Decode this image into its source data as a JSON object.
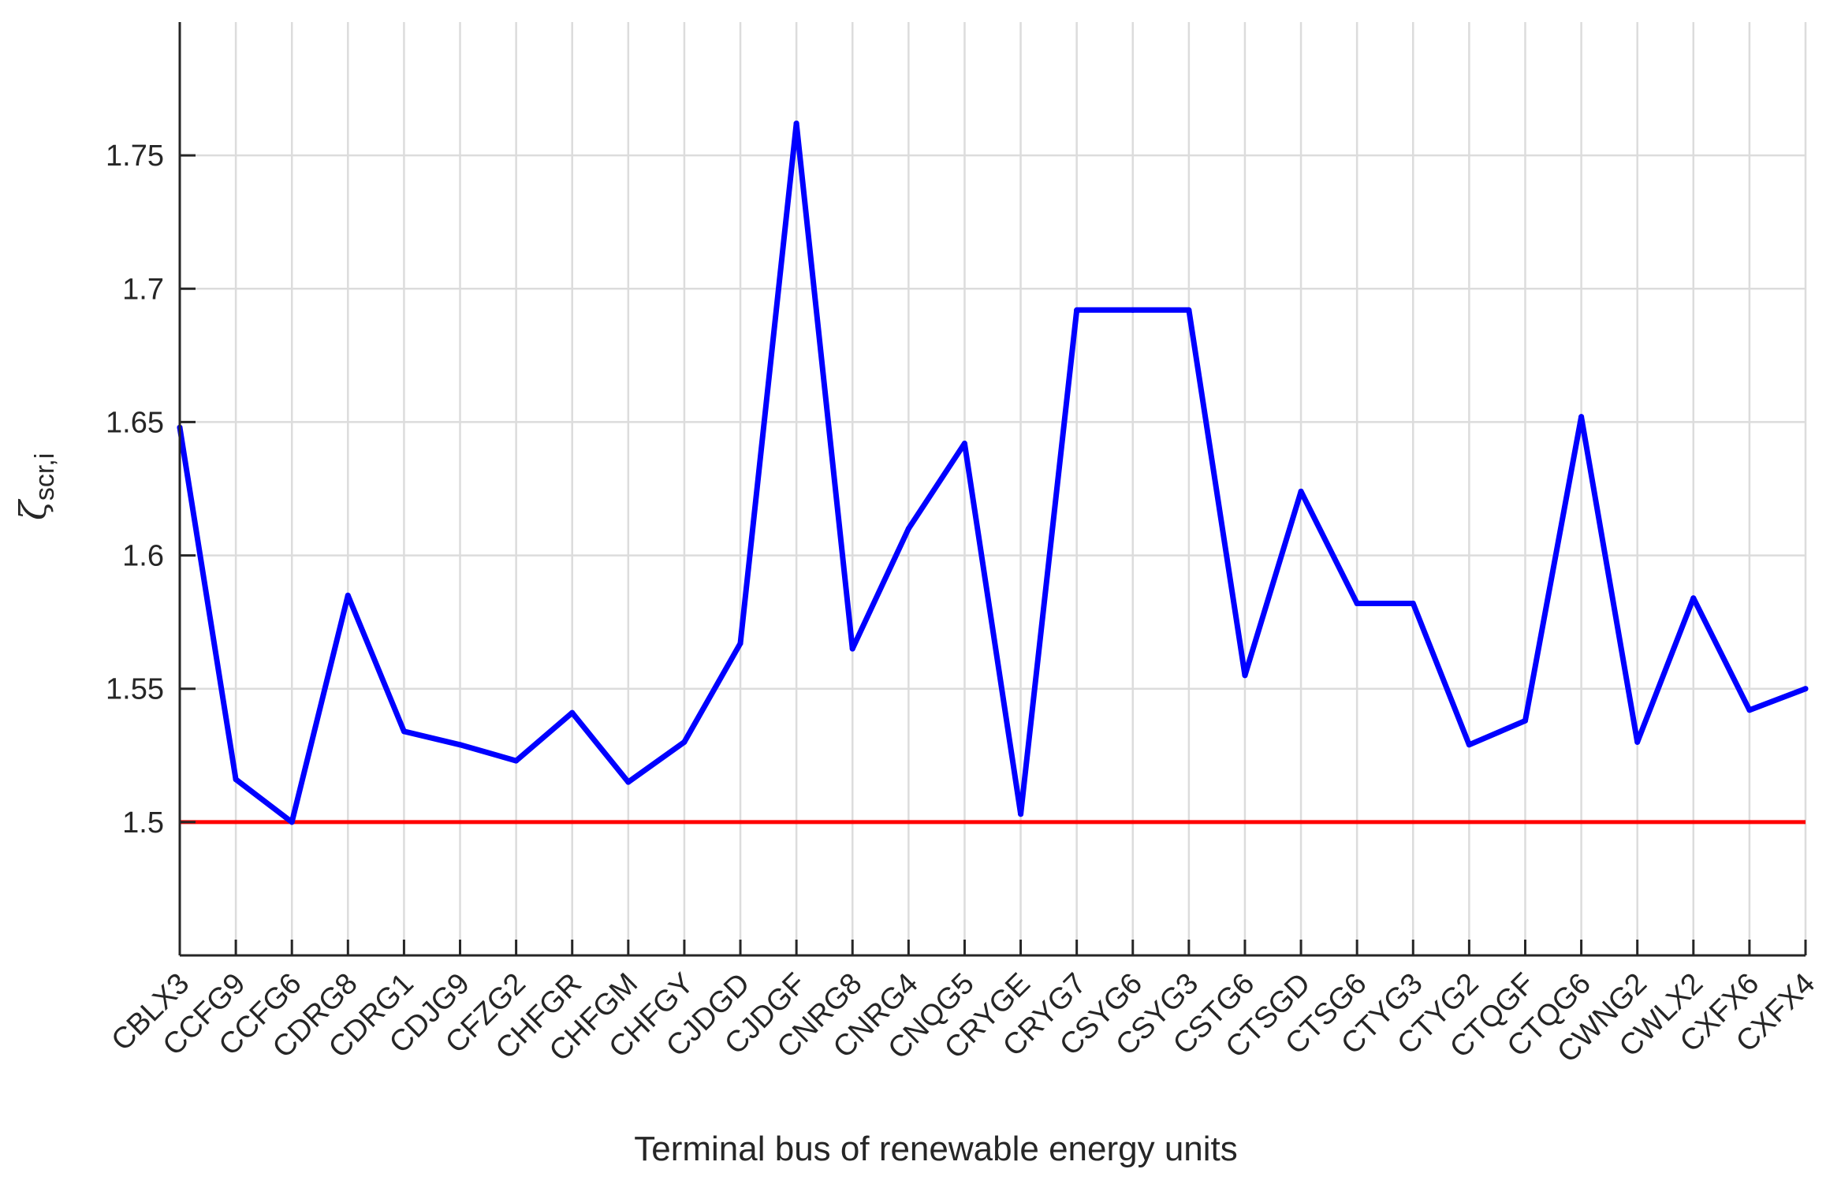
{
  "chart_data": {
    "type": "line",
    "xlabel": "Terminal bus of renewable energy units",
    "ylabel_symbol": "ζ",
    "ylabel_subscript": "scr,i",
    "categories": [
      "CBLX3",
      "CCFG9",
      "CCFG6",
      "CDRG8",
      "CDRG1",
      "CDJG9",
      "CFZG2",
      "CHFGR",
      "CHFGM",
      "CHFGY",
      "CJDGD",
      "CJDGF",
      "CNRG8",
      "CNRG4",
      "CNQG5",
      "CRYGE",
      "CRYG7",
      "CSYG6",
      "CSYG3",
      "CSTG6",
      "CTSGD",
      "CTSG6",
      "CTYG3",
      "CTYG2",
      "CTQGF",
      "CTQG6",
      "CWNG2",
      "CWLX2",
      "CXFX6",
      "CXFX4"
    ],
    "series": [
      {
        "color": "#0000ff",
        "values": [
          1.648,
          1.516,
          1.5,
          1.585,
          1.534,
          1.529,
          1.523,
          1.541,
          1.515,
          1.53,
          1.567,
          1.762,
          1.565,
          1.61,
          1.642,
          1.503,
          1.692,
          1.692,
          1.692,
          1.555,
          1.624,
          1.582,
          1.582,
          1.529,
          1.538,
          1.652,
          1.53,
          1.584,
          1.542,
          1.55
        ]
      }
    ],
    "threshold": {
      "value": 1.5,
      "color": "#ff0000"
    },
    "ylim": [
      1.45,
      1.8
    ],
    "yticks": [
      "1.5",
      "1.55",
      "1.6",
      "1.65",
      "1.7",
      "1.75"
    ],
    "grid": true
  }
}
